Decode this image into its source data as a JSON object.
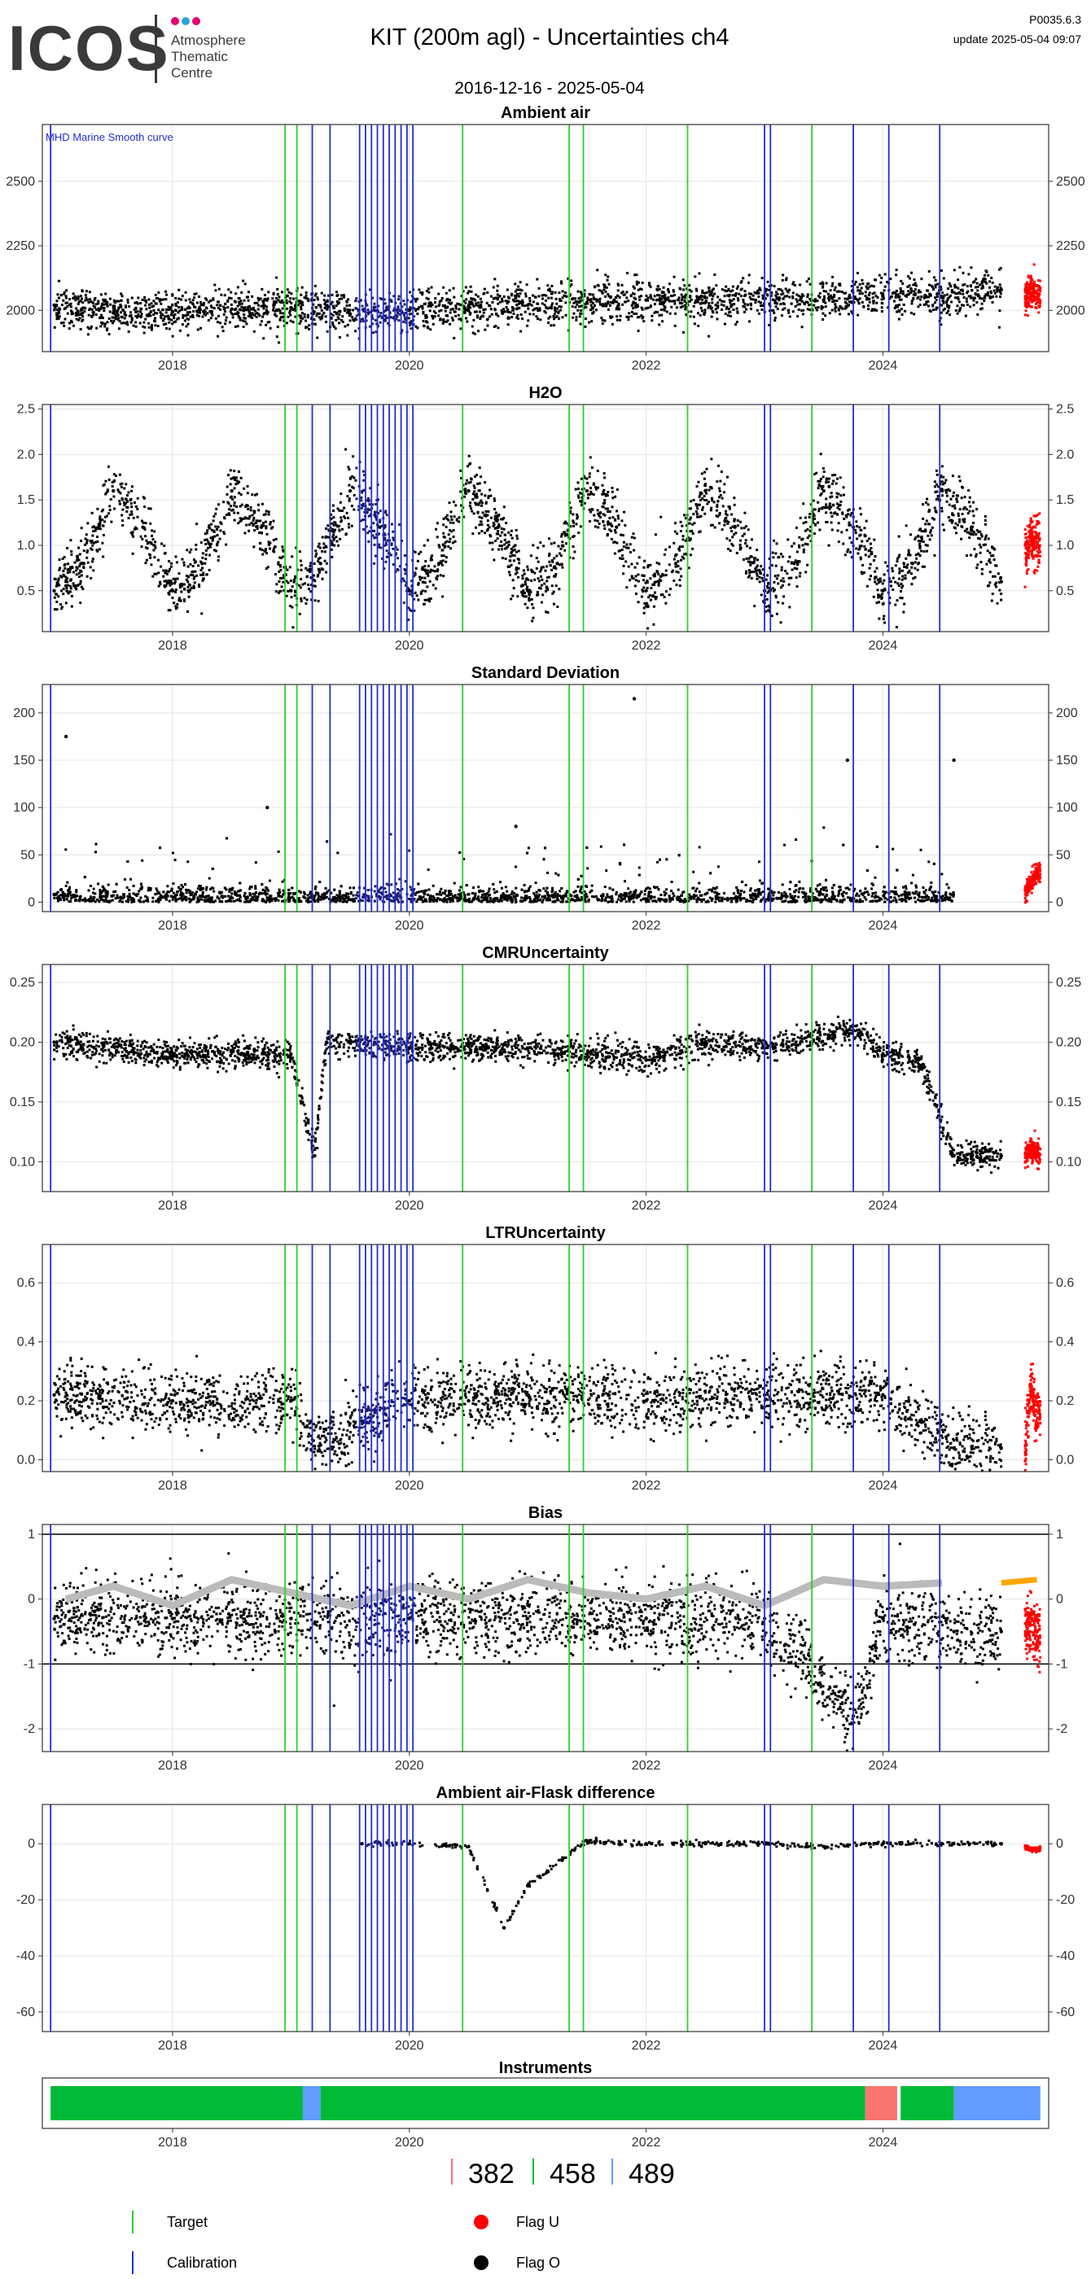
{
  "header": {
    "logo_text": "ICOS",
    "logo_subtitle": [
      "Atmosphere",
      "Thematic",
      "Centre"
    ],
    "logo_dot_colors": [
      "#e6006e",
      "#2aa7d6",
      "#e6006e"
    ],
    "title": "KIT  (200m agl) - Uncertainties ch4",
    "date_range": "2016-12-16 - 2025-05-04",
    "version": "P0035.6.3",
    "update": "update  2025-05-04 09:07"
  },
  "colors": {
    "flag_o": "#000000",
    "flag_u": "#ff0000",
    "calibration": "#1f2fd0",
    "target": "#2ad12a",
    "smooth_curve": "#bbbbbb",
    "smooth_curve_recent": "#ffa500",
    "instrument_382": "#f8766d",
    "instrument_458": "#00ba38",
    "instrument_489": "#619cff"
  },
  "event_lines": {
    "target": [
      2018.95,
      2019.05,
      2020.45,
      2021.35,
      2021.47,
      2022.35,
      2023.4
    ],
    "calibration": [
      2016.97,
      2019.18,
      2019.33,
      2019.58,
      2019.63,
      2019.68,
      2019.73,
      2019.78,
      2019.83,
      2019.88,
      2019.93,
      2019.98,
      2020.03,
      2023.0,
      2023.05,
      2023.75,
      2024.05,
      2024.48
    ]
  },
  "chart_data": [
    {
      "type": "scatter",
      "title": "Ambient air",
      "annotation": "MHD Marine Smooth curve",
      "xlim": [
        2016.9,
        2025.4
      ],
      "ylim": [
        1840,
        2720
      ],
      "yticks": [
        2000,
        2250,
        2500
      ],
      "xticks": [
        "2018",
        "2020",
        "2022",
        "2024"
      ],
      "series": [
        {
          "name": "Flag O",
          "x": [
            2017.0,
            2017.5,
            2018.0,
            2018.5,
            2019.0,
            2019.5,
            2020.0,
            2020.5,
            2021.0,
            2021.5,
            2022.0,
            2022.5,
            2023.0,
            2023.5,
            2024.0,
            2024.5,
            2025.0
          ],
          "y": [
            2020,
            1990,
            1995,
            2005,
            2010,
            1985,
            2000,
            2015,
            2020,
            2030,
            2040,
            2030,
            2045,
            2040,
            2055,
            2050,
            2080
          ]
        },
        {
          "name": "Flag U",
          "x": [
            2025.2,
            2025.25,
            2025.3
          ],
          "y": [
            2050,
            2070,
            2060
          ]
        }
      ]
    },
    {
      "type": "scatter",
      "title": "H2O",
      "xlim": [
        2016.9,
        2025.4
      ],
      "ylim": [
        0.05,
        2.55
      ],
      "yticks": [
        0.5,
        1.0,
        1.5,
        2.0,
        2.5
      ],
      "xticks": [
        "2018",
        "2020",
        "2022",
        "2024"
      ],
      "series": [
        {
          "name": "Flag O",
          "x": [
            2017.0,
            2017.25,
            2017.5,
            2017.75,
            2018.0,
            2018.25,
            2018.5,
            2018.75,
            2019.0,
            2019.25,
            2019.5,
            2019.75,
            2020.0,
            2020.25,
            2020.5,
            2020.75,
            2021.0,
            2021.25,
            2021.5,
            2021.75,
            2022.0,
            2022.25,
            2022.5,
            2022.75,
            2023.0,
            2023.25,
            2023.5,
            2023.75,
            2024.0,
            2024.25,
            2024.5,
            2024.75,
            2025.0
          ],
          "y": [
            0.5,
            0.8,
            1.6,
            1.2,
            0.5,
            0.8,
            1.6,
            1.2,
            0.5,
            0.8,
            1.6,
            1.2,
            0.5,
            0.8,
            1.6,
            1.2,
            0.5,
            0.8,
            1.6,
            1.2,
            0.5,
            0.8,
            1.6,
            1.2,
            0.5,
            0.8,
            1.6,
            1.2,
            0.5,
            0.8,
            1.6,
            1.2,
            0.6
          ]
        },
        {
          "name": "Flag U",
          "x": [
            2025.2,
            2025.25,
            2025.3
          ],
          "y": [
            0.9,
            1.1,
            1.0
          ]
        }
      ]
    },
    {
      "type": "scatter",
      "title": "Standard Deviation",
      "xlim": [
        2016.9,
        2025.4
      ],
      "ylim": [
        -10,
        230
      ],
      "yticks": [
        0,
        50,
        100,
        150,
        200
      ],
      "xticks": [
        "2018",
        "2020",
        "2022",
        "2024"
      ],
      "series": [
        {
          "name": "Flag O",
          "x": [
            2017.0,
            2017.1,
            2018.8,
            2020.9,
            2021.9,
            2023.7,
            2024.6
          ],
          "y": [
            8,
            175,
            100,
            80,
            215,
            150,
            150
          ]
        },
        {
          "name": "Flag U",
          "x": [
            2025.2,
            2025.25,
            2025.3
          ],
          "y": [
            10,
            20,
            30
          ]
        }
      ]
    },
    {
      "type": "scatter",
      "title": "CMRUncertainty",
      "xlim": [
        2016.9,
        2025.4
      ],
      "ylim": [
        0.075,
        0.265
      ],
      "yticks": [
        0.1,
        0.15,
        0.2,
        0.25
      ],
      "xticks": [
        "2018",
        "2020",
        "2022",
        "2024"
      ],
      "series": [
        {
          "name": "Flag O",
          "x": [
            2017.0,
            2018.0,
            2019.0,
            2019.2,
            2019.3,
            2020.0,
            2021.0,
            2022.0,
            2022.5,
            2023.0,
            2023.75,
            2024.0,
            2024.3,
            2024.6,
            2025.0
          ],
          "y": [
            0.2,
            0.19,
            0.19,
            0.105,
            0.2,
            0.195,
            0.195,
            0.185,
            0.2,
            0.195,
            0.21,
            0.19,
            0.185,
            0.105,
            0.105
          ]
        },
        {
          "name": "Flag U",
          "x": [
            2025.2,
            2025.25,
            2025.3
          ],
          "y": [
            0.105,
            0.11,
            0.108
          ]
        }
      ]
    },
    {
      "type": "scatter",
      "title": "LTRUncertainty",
      "xlim": [
        2016.9,
        2025.4
      ],
      "ylim": [
        -0.04,
        0.73
      ],
      "yticks": [
        0.0,
        0.2,
        0.4,
        0.6
      ],
      "xticks": [
        "2018",
        "2020",
        "2022",
        "2024"
      ],
      "series": [
        {
          "name": "Flag O",
          "x": [
            2017.0,
            2018.0,
            2019.0,
            2019.25,
            2020.0,
            2020.5,
            2021.0,
            2022.0,
            2023.0,
            2024.0,
            2024.6,
            2025.0
          ],
          "y": [
            0.22,
            0.2,
            0.2,
            0.05,
            0.2,
            0.2,
            0.22,
            0.2,
            0.22,
            0.22,
            0.04,
            0.04
          ]
        },
        {
          "name": "Flag U",
          "x": [
            2025.2,
            2025.25,
            2025.3
          ],
          "y": [
            0.03,
            0.25,
            0.15
          ]
        }
      ]
    },
    {
      "type": "scatter",
      "title": "Bias",
      "xlim": [
        2016.9,
        2025.4
      ],
      "ylim": [
        -2.35,
        1.15
      ],
      "yticks": [
        -2,
        -1,
        0,
        1
      ],
      "hlines": [
        -1,
        1
      ],
      "xticks": [
        "2018",
        "2020",
        "2022",
        "2024"
      ],
      "series": [
        {
          "name": "Flag O",
          "x": [
            2017.0,
            2018.0,
            2019.0,
            2020.0,
            2021.0,
            2022.0,
            2023.0,
            2023.75,
            2024.0,
            2024.6,
            2025.0
          ],
          "y": [
            -0.3,
            -0.3,
            -0.3,
            -0.3,
            -0.3,
            -0.3,
            -0.3,
            -1.8,
            -0.3,
            -0.5,
            -0.5
          ]
        },
        {
          "name": "Flag U",
          "x": [
            2025.2,
            2025.25,
            2025.3
          ],
          "y": [
            -0.5,
            -0.3,
            -0.6
          ]
        },
        {
          "name": "smooth",
          "x": [
            2017.1,
            2017.5,
            2018.0,
            2018.5,
            2019.0,
            2019.5,
            2020.0,
            2020.5,
            2021.0,
            2021.5,
            2022.0,
            2022.5,
            2023.0,
            2023.5,
            2024.0,
            2024.5,
            2025.0,
            2025.3
          ],
          "y": [
            0.0,
            0.2,
            -0.1,
            0.3,
            0.1,
            -0.1,
            0.2,
            0.0,
            0.3,
            0.1,
            0.0,
            0.2,
            -0.1,
            0.3,
            0.2,
            0.25,
            0.25,
            0.3
          ]
        }
      ]
    },
    {
      "type": "scatter",
      "title": "Ambient air-Flask difference",
      "xlim": [
        2016.9,
        2025.4
      ],
      "ylim": [
        -67,
        14
      ],
      "yticks": [
        -60,
        -40,
        -20,
        0
      ],
      "xticks": [
        "2018",
        "2020",
        "2022",
        "2024"
      ],
      "series": [
        {
          "name": "Flag O",
          "x": [
            2019.6,
            2020.0,
            2020.5,
            2020.8,
            2021.0,
            2021.5,
            2022.0,
            2022.5,
            2023.0,
            2023.5,
            2024.0,
            2024.5,
            2025.0
          ],
          "y": [
            0,
            0,
            -1,
            -30,
            -15,
            1,
            0,
            0,
            0,
            -1,
            0,
            0,
            0
          ]
        },
        {
          "name": "Flag U",
          "x": [
            2025.2,
            2025.25
          ],
          "y": [
            -1,
            -2
          ]
        }
      ]
    }
  ],
  "instruments": {
    "title": "Instruments",
    "xlim": [
      2016.9,
      2025.4
    ],
    "xticks": [
      "2018",
      "2020",
      "2022",
      "2024"
    ],
    "segments": [
      {
        "id": "458",
        "start": 2016.97,
        "end": 2019.1
      },
      {
        "id": "489",
        "start": 2019.1,
        "end": 2019.25
      },
      {
        "id": "458",
        "start": 2019.25,
        "end": 2023.85
      },
      {
        "id": "382",
        "start": 2023.85,
        "end": 2024.12
      },
      {
        "id": "458",
        "start": 2024.15,
        "end": 2024.6
      },
      {
        "id": "489",
        "start": 2024.6,
        "end": 2025.33
      }
    ],
    "legend_ids": [
      "382",
      "458",
      "489"
    ]
  },
  "legend": {
    "target": "Target",
    "calibration": "Calibration",
    "flag_u": "Flag U",
    "flag_o": "Flag O"
  }
}
